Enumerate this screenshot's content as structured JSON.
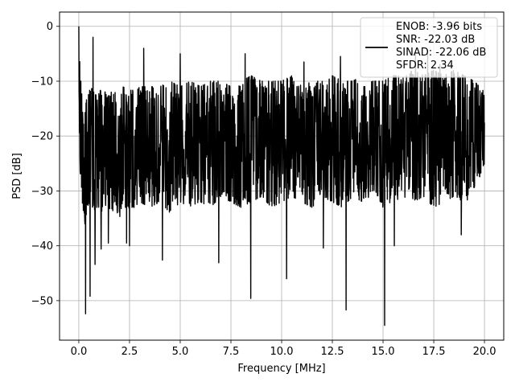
{
  "chart_data": {
    "type": "line",
    "title": "",
    "xlabel": "Frequency [MHz]",
    "ylabel": "PSD [dB]",
    "xlim": [
      -0.95,
      20.95
    ],
    "ylim": [
      -57.2,
      2.6
    ],
    "xticks": [
      0,
      2.5,
      5,
      7.5,
      10,
      12.5,
      15,
      17.5,
      20
    ],
    "xtick_labels": [
      "0.0",
      "2.5",
      "5.0",
      "7.5",
      "10.0",
      "12.5",
      "15.0",
      "17.5",
      "20.0"
    ],
    "yticks": [
      0,
      -10,
      -20,
      -30,
      -40,
      -50
    ],
    "ytick_labels": [
      "0",
      "−10",
      "−20",
      "−30",
      "−40",
      "−50"
    ],
    "grid": true,
    "line_color": "#000000",
    "legend": {
      "placement": "upper right",
      "entries": [
        "ENOB: -3.96 bits",
        "SNR: -22.03 dB",
        "SINAD: -22.06 dB",
        "SFDR: 2.34"
      ]
    },
    "series": [
      {
        "x": [
          0,
          0.03,
          0.06,
          0.1,
          0.15,
          0.2,
          0.25,
          0.3,
          0.35,
          0.4,
          0.5,
          0.6,
          0.7,
          0.8,
          1.0,
          1.2,
          1.4,
          1.6,
          1.8,
          2.0,
          2.2,
          2.4,
          2.6,
          2.8,
          3.0,
          3.5,
          4.0,
          4.5,
          5.0,
          5.5,
          6.0,
          6.5,
          7.0,
          7.5,
          8.0,
          8.5,
          9.0,
          9.5,
          10.0,
          10.5,
          11.0,
          11.5,
          12.0,
          12.5,
          13.0,
          13.5,
          14.0,
          14.5,
          15.0,
          15.5,
          16.0,
          16.5,
          17.0,
          17.5,
          18.0,
          18.5,
          19.0,
          19.5,
          20.0
        ],
        "upper": [
          0,
          -5,
          -8,
          -10,
          -12,
          -14,
          -12,
          -11,
          -13,
          -12,
          -12,
          -11,
          -12,
          -12,
          -12,
          -11,
          -13,
          -12,
          -11,
          -12,
          -11,
          -12,
          -11,
          -12,
          -11,
          -11,
          -11,
          -10,
          -11,
          -10,
          -11,
          -10,
          -10,
          -11,
          -10,
          -9,
          -10,
          -10,
          -10,
          -9,
          -11,
          -10,
          -10,
          -9,
          -10,
          -10,
          -9,
          -10,
          -10,
          -9,
          -9,
          -8,
          -9,
          -8,
          -9,
          -8,
          -9,
          -10,
          -12
        ],
        "lower": [
          -8,
          -20,
          -26,
          -28,
          -30,
          -34,
          -33,
          -36,
          -35,
          -33,
          -34,
          -32,
          -35,
          -33,
          -33,
          -34,
          -32,
          -34,
          -33,
          -35,
          -32,
          -34,
          -33,
          -33,
          -32,
          -33,
          -32,
          -34,
          -32,
          -33,
          -32,
          -33,
          -31,
          -32,
          -33,
          -32,
          -31,
          -33,
          -32,
          -31,
          -32,
          -33,
          -31,
          -32,
          -33,
          -31,
          -32,
          -31,
          -33,
          -32,
          -31,
          -32,
          -31,
          -33,
          -32,
          -31,
          -32,
          -31,
          -25
        ],
        "peaks": [
          [
            0.0,
            0.0
          ],
          [
            0.7,
            -2
          ],
          [
            3.2,
            -4
          ],
          [
            5.0,
            -5
          ],
          [
            8.2,
            -5
          ],
          [
            11.1,
            -6.5
          ],
          [
            12.9,
            -5.5
          ],
          [
            16.6,
            -5.2
          ],
          [
            17.2,
            -5
          ],
          [
            17.8,
            -7
          ]
        ],
        "dips": [
          [
            0.33,
            -52.4
          ],
          [
            0.55,
            -49.2
          ],
          [
            0.8,
            -43.4
          ],
          [
            1.1,
            -40.6
          ],
          [
            1.45,
            -39.5
          ],
          [
            2.35,
            -39.5
          ],
          [
            2.5,
            -40
          ],
          [
            4.12,
            -42.6
          ],
          [
            6.9,
            -43.1
          ],
          [
            8.48,
            -49.6
          ],
          [
            10.25,
            -46
          ],
          [
            12.05,
            -40.4
          ],
          [
            13.18,
            -51.7
          ],
          [
            15.08,
            -54.5
          ],
          [
            15.55,
            -40
          ],
          [
            18.85,
            -38
          ]
        ]
      }
    ]
  }
}
